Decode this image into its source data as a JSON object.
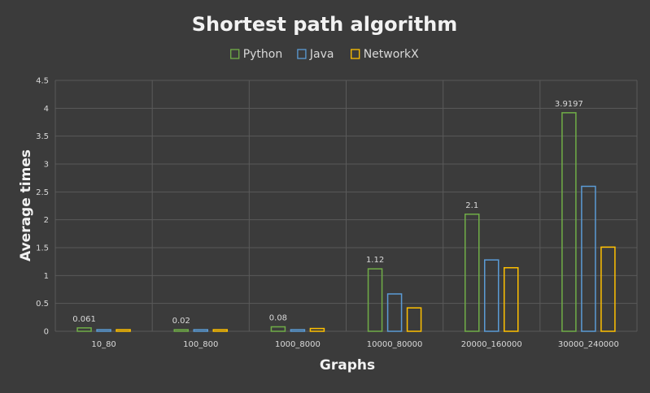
{
  "chart_data": {
    "type": "bar",
    "title": "Shortest path algorithm",
    "xlabel": "Graphs",
    "ylabel": "Average times",
    "categories": [
      "10_80",
      "100_800",
      "1000_8000",
      "10000_80000",
      "20000_160000",
      "30000_240000"
    ],
    "series": [
      {
        "name": "Python",
        "color": "#70ad47",
        "values": [
          0.061,
          0.02,
          0.08,
          1.12,
          2.1,
          3.9197
        ],
        "labels": [
          "0.061",
          "0.02",
          "0.08",
          "1.12",
          "2.1",
          "3.9197"
        ]
      },
      {
        "name": "Java",
        "color": "#5b9bd5",
        "values": [
          0,
          0.02,
          0,
          0.67,
          1.28,
          2.6
        ],
        "labels": [
          "",
          "",
          "",
          "",
          "",
          ""
        ]
      },
      {
        "name": "NetworkX",
        "color": "#ffc000",
        "values": [
          0.02,
          0.02,
          0.05,
          0.42,
          1.14,
          1.51
        ],
        "labels": [
          "",
          "",
          "",
          "",
          "",
          ""
        ]
      }
    ],
    "ylim": [
      0,
      4.5
    ],
    "yticks": [
      "0",
      "0.5",
      "1",
      "1.5",
      "2",
      "2.5",
      "3",
      "3.5",
      "4",
      "4.5"
    ],
    "grid": true,
    "legend_position": "top"
  }
}
